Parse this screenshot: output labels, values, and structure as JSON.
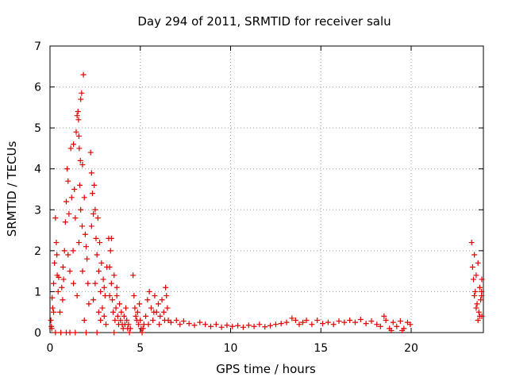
{
  "chart_data": {
    "type": "scatter",
    "title": "Day 294 of 2011, SRMTID for receiver salu",
    "xlabel": "GPS time / hours",
    "ylabel": "SRMTID / TECUs",
    "xlim": [
      0,
      24
    ],
    "ylim": [
      0,
      7
    ],
    "xticks": [
      "0",
      "5",
      "10",
      "15",
      "20"
    ],
    "yticks": [
      "0",
      "1",
      "2",
      "3",
      "4",
      "5",
      "6",
      "7"
    ],
    "grid": true,
    "marker": "+",
    "series_color": "#e00000",
    "series": [
      {
        "name": "SRMTID",
        "clusters": [
          {
            "x_range": [
              0.0,
              0.5
            ],
            "points": [
              [
                0.05,
                0.3
              ],
              [
                0.1,
                0.1
              ],
              [
                0.15,
                0.6
              ],
              [
                0.2,
                1.2
              ],
              [
                0.25,
                1.7
              ],
              [
                0.3,
                2.8
              ],
              [
                0.35,
                2.2
              ],
              [
                0.4,
                1.4
              ],
              [
                0.12,
                0.85
              ],
              [
                0.45,
                1.0
              ],
              [
                0.3,
                0.0
              ],
              [
                0.2,
                0.5
              ],
              [
                0.08,
                0.15
              ],
              [
                0.38,
                1.9
              ],
              [
                0.48,
                1.35
              ]
            ]
          },
          {
            "x_range": [
              0.5,
              1.2
            ],
            "points": [
              [
                0.6,
                0.0
              ],
              [
                0.7,
                0.8
              ],
              [
                0.75,
                1.3
              ],
              [
                0.8,
                2.0
              ],
              [
                0.85,
                2.7
              ],
              [
                0.9,
                3.2
              ],
              [
                0.95,
                4.0
              ],
              [
                1.0,
                3.7
              ],
              [
                1.05,
                2.9
              ],
              [
                1.1,
                1.5
              ],
              [
                0.65,
                1.1
              ],
              [
                0.9,
                0.0
              ],
              [
                1.15,
                4.5
              ],
              [
                1.2,
                3.3
              ],
              [
                0.55,
                0.5
              ],
              [
                1.0,
                1.9
              ],
              [
                0.72,
                1.6
              ],
              [
                1.1,
                0.0
              ]
            ]
          },
          {
            "x_range": [
              1.2,
              2.2
            ],
            "points": [
              [
                1.3,
                4.6
              ],
              [
                1.35,
                3.5
              ],
              [
                1.4,
                2.8
              ],
              [
                1.45,
                4.9
              ],
              [
                1.5,
                5.3
              ],
              [
                1.55,
                5.4
              ],
              [
                1.6,
                4.8
              ],
              [
                1.62,
                4.5
              ],
              [
                1.65,
                3.6
              ],
              [
                1.7,
                5.7
              ],
              [
                1.75,
                5.85
              ],
              [
                1.8,
                4.1
              ],
              [
                1.85,
                6.3
              ],
              [
                1.9,
                3.3
              ],
              [
                1.95,
                2.4
              ],
              [
                2.0,
                2.1
              ],
              [
                2.05,
                1.8
              ],
              [
                2.1,
                1.2
              ],
              [
                2.15,
                0.7
              ],
              [
                1.5,
                0.9
              ],
              [
                1.6,
                2.2
              ],
              [
                1.7,
                3.0
              ],
              [
                1.8,
                1.5
              ],
              [
                1.9,
                0.3
              ],
              [
                2.0,
                0.0
              ],
              [
                1.4,
                0.0
              ],
              [
                1.58,
                5.2
              ],
              [
                1.68,
                4.2
              ],
              [
                1.78,
                2.6
              ],
              [
                1.28,
                2.0
              ],
              [
                1.3,
                1.2
              ]
            ]
          },
          {
            "x_range": [
              2.2,
              3.2
            ],
            "points": [
              [
                2.25,
                4.4
              ],
              [
                2.3,
                3.9
              ],
              [
                2.35,
                3.4
              ],
              [
                2.4,
                2.9
              ],
              [
                2.45,
                3.6
              ],
              [
                2.5,
                3.0
              ],
              [
                2.55,
                2.3
              ],
              [
                2.6,
                1.9
              ],
              [
                2.65,
                2.8
              ],
              [
                2.7,
                1.5
              ],
              [
                2.75,
                2.2
              ],
              [
                2.8,
                1.0
              ],
              [
                2.85,
                1.7
              ],
              [
                2.9,
                0.6
              ],
              [
                2.95,
                1.3
              ],
              [
                3.0,
                0.4
              ],
              [
                3.05,
                0.9
              ],
              [
                3.1,
                0.2
              ],
              [
                3.15,
                1.6
              ],
              [
                2.4,
                0.8
              ],
              [
                2.6,
                0.0
              ],
              [
                2.8,
                0.3
              ],
              [
                3.0,
                1.1
              ],
              [
                2.5,
                1.2
              ],
              [
                2.7,
                0.5
              ],
              [
                2.3,
                2.6
              ]
            ]
          },
          {
            "x_range": [
              3.2,
              4.5
            ],
            "points": [
              [
                3.25,
                2.3
              ],
              [
                3.3,
                1.6
              ],
              [
                3.35,
                2.0
              ],
              [
                3.4,
                1.2
              ],
              [
                3.45,
                0.8
              ],
              [
                3.5,
                0.5
              ],
              [
                3.55,
                1.4
              ],
              [
                3.6,
                0.3
              ],
              [
                3.65,
                0.6
              ],
              [
                3.7,
                0.9
              ],
              [
                3.75,
                0.4
              ],
              [
                3.8,
                0.2
              ],
              [
                3.85,
                0.7
              ],
              [
                3.9,
                0.3
              ],
              [
                3.95,
                0.5
              ],
              [
                4.0,
                0.2
              ],
              [
                4.05,
                0.1
              ],
              [
                4.1,
                0.4
              ],
              [
                4.15,
                0.2
              ],
              [
                4.2,
                0.6
              ],
              [
                4.25,
                0.3
              ],
              [
                4.3,
                0.1
              ],
              [
                4.35,
                0.2
              ],
              [
                4.4,
                0.0
              ],
              [
                4.45,
                0.1
              ],
              [
                3.4,
                2.3
              ],
              [
                3.3,
                0.9
              ],
              [
                3.7,
                1.1
              ],
              [
                3.55,
                0.0
              ]
            ]
          },
          {
            "x_range": [
              4.5,
              6.6
            ],
            "points": [
              [
                4.6,
                1.4
              ],
              [
                4.65,
                0.9
              ],
              [
                4.7,
                0.6
              ],
              [
                4.75,
                0.4
              ],
              [
                4.8,
                0.3
              ],
              [
                4.85,
                0.5
              ],
              [
                4.9,
                0.2
              ],
              [
                4.95,
                0.7
              ],
              [
                5.0,
                0.3
              ],
              [
                5.05,
                0.1
              ],
              [
                5.1,
                0.0
              ],
              [
                5.15,
                0.1
              ],
              [
                5.2,
                0.2
              ],
              [
                5.3,
                0.4
              ],
              [
                5.4,
                0.8
              ],
              [
                5.5,
                1.0
              ],
              [
                5.6,
                0.6
              ],
              [
                5.7,
                0.3
              ],
              [
                5.8,
                0.9
              ],
              [
                5.9,
                0.5
              ],
              [
                6.0,
                0.7
              ],
              [
                6.1,
                0.4
              ],
              [
                6.2,
                0.8
              ],
              [
                6.3,
                0.5
              ],
              [
                6.4,
                1.1
              ],
              [
                6.45,
                0.9
              ],
              [
                6.5,
                0.6
              ],
              [
                6.55,
                0.3
              ],
              [
                5.45,
                0.2
              ],
              [
                5.75,
                0.5
              ],
              [
                6.05,
                0.2
              ],
              [
                6.35,
                0.3
              ]
            ]
          },
          {
            "x_range": [
              6.6,
              20.0
            ],
            "points": [
              [
                6.7,
                0.25
              ],
              [
                7.0,
                0.3
              ],
              [
                7.2,
                0.2
              ],
              [
                7.4,
                0.28
              ],
              [
                7.7,
                0.22
              ],
              [
                8.0,
                0.18
              ],
              [
                8.3,
                0.25
              ],
              [
                8.6,
                0.2
              ],
              [
                8.9,
                0.15
              ],
              [
                9.2,
                0.2
              ],
              [
                9.5,
                0.13
              ],
              [
                9.8,
                0.18
              ],
              [
                10.1,
                0.15
              ],
              [
                10.4,
                0.17
              ],
              [
                10.7,
                0.13
              ],
              [
                11.0,
                0.18
              ],
              [
                11.3,
                0.15
              ],
              [
                11.6,
                0.2
              ],
              [
                11.9,
                0.14
              ],
              [
                12.2,
                0.17
              ],
              [
                12.5,
                0.2
              ],
              [
                12.8,
                0.22
              ],
              [
                13.1,
                0.25
              ],
              [
                13.4,
                0.35
              ],
              [
                13.6,
                0.3
              ],
              [
                13.8,
                0.2
              ],
              [
                14.0,
                0.25
              ],
              [
                14.2,
                0.3
              ],
              [
                14.5,
                0.2
              ],
              [
                14.8,
                0.3
              ],
              [
                15.1,
                0.22
              ],
              [
                15.4,
                0.25
              ],
              [
                15.7,
                0.2
              ],
              [
                16.0,
                0.28
              ],
              [
                16.3,
                0.25
              ],
              [
                16.6,
                0.3
              ],
              [
                16.9,
                0.25
              ],
              [
                17.2,
                0.32
              ],
              [
                17.5,
                0.22
              ],
              [
                17.8,
                0.28
              ],
              [
                18.1,
                0.2
              ],
              [
                18.3,
                0.15
              ],
              [
                18.5,
                0.4
              ],
              [
                18.6,
                0.3
              ],
              [
                18.8,
                0.1
              ],
              [
                19.0,
                0.25
              ],
              [
                19.2,
                0.15
              ],
              [
                19.4,
                0.28
              ],
              [
                19.6,
                0.1
              ],
              [
                19.8,
                0.25
              ],
              [
                19.95,
                0.2
              ],
              [
                18.9,
                0.05
              ],
              [
                19.5,
                0.05
              ]
            ]
          },
          {
            "x_range": [
              23.3,
              24.0
            ],
            "points": [
              [
                23.35,
                2.2
              ],
              [
                23.4,
                1.6
              ],
              [
                23.45,
                1.3
              ],
              [
                23.5,
                1.9
              ],
              [
                23.55,
                1.0
              ],
              [
                23.6,
                1.4
              ],
              [
                23.65,
                0.7
              ],
              [
                23.7,
                1.7
              ],
              [
                23.75,
                0.5
              ],
              [
                23.8,
                1.1
              ],
              [
                23.85,
                0.8
              ],
              [
                23.9,
                0.9
              ],
              [
                23.95,
                0.4
              ],
              [
                24.0,
                1.3
              ],
              [
                23.5,
                0.9
              ],
              [
                23.7,
                0.3
              ],
              [
                23.9,
                1.0
              ],
              [
                23.6,
                0.6
              ],
              [
                23.8,
                0.4
              ]
            ]
          }
        ]
      }
    ]
  }
}
